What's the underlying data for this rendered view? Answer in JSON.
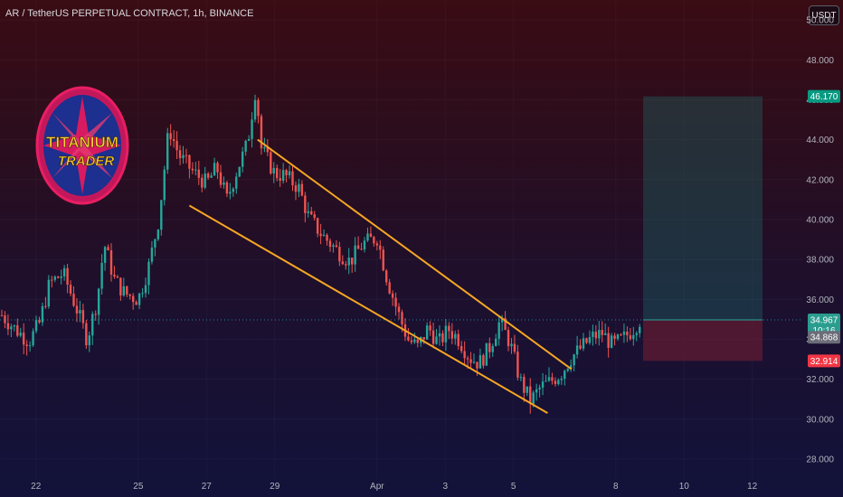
{
  "header": {
    "title": "AR / TetherUS PERPETUAL CONTRACT, 1h, BINANCE",
    "currency": "USDT"
  },
  "logo": {
    "line1": "TITANIUM",
    "line2": "TRADER"
  },
  "colors": {
    "up": "#26a69a",
    "down": "#ef5350",
    "channel": "#f5a623",
    "target_zone": "#1e6f6a",
    "stop_zone": "#7a1f33",
    "target_tag": "#089981",
    "stop_tag": "#f23645",
    "last_tag": "#2a9d8f",
    "ref_tag": "#6b6d78"
  },
  "chart_data": {
    "type": "candlestick",
    "symbol": "AR / TetherUS PERPETUAL CONTRACT",
    "interval": "1h",
    "exchange": "BINANCE",
    "ylim": [
      27,
      51
    ],
    "y_ticks": [
      "28.000",
      "30.000",
      "32.000",
      "34.000",
      "36.000",
      "38.000",
      "40.000",
      "42.000",
      "44.000",
      "46.000",
      "48.000",
      "50.000"
    ],
    "x_ticks": [
      {
        "label": "22",
        "day": 22
      },
      {
        "label": "25",
        "day": 25
      },
      {
        "label": "27",
        "day": 27
      },
      {
        "label": "29",
        "day": 29
      },
      {
        "label": "Apr",
        "day": 32
      },
      {
        "label": "3",
        "day": 34
      },
      {
        "label": "5",
        "day": 36
      },
      {
        "label": "8",
        "day": 39
      },
      {
        "label": "10",
        "day": 41
      },
      {
        "label": "12",
        "day": 43
      }
    ],
    "x_domain": [
      21.0,
      43.3
    ],
    "price_path": [
      [
        21.0,
        35.2
      ],
      [
        21.4,
        34.5
      ],
      [
        21.8,
        33.9
      ],
      [
        22.1,
        34.8
      ],
      [
        22.4,
        36.8
      ],
      [
        22.8,
        37.3
      ],
      [
        23.2,
        35.5
      ],
      [
        23.5,
        34.0
      ],
      [
        23.8,
        36.0
      ],
      [
        24.0,
        38.8
      ],
      [
        24.3,
        37.0
      ],
      [
        24.6,
        36.3
      ],
      [
        25.0,
        36.0
      ],
      [
        25.3,
        37.6
      ],
      [
        25.6,
        40.0
      ],
      [
        25.9,
        44.6
      ],
      [
        26.2,
        43.2
      ],
      [
        26.6,
        42.4
      ],
      [
        27.0,
        41.8
      ],
      [
        27.3,
        42.6
      ],
      [
        27.6,
        41.0
      ],
      [
        27.9,
        42.5
      ],
      [
        28.2,
        43.8
      ],
      [
        28.45,
        46.7
      ],
      [
        28.6,
        43.6
      ],
      [
        29.0,
        42.3
      ],
      [
        29.3,
        42.2
      ],
      [
        29.7,
        41.6
      ],
      [
        30.0,
        40.1
      ],
      [
        30.4,
        39.2
      ],
      [
        30.8,
        38.5
      ],
      [
        31.2,
        37.9
      ],
      [
        31.6,
        38.8
      ],
      [
        32.0,
        39.1
      ],
      [
        32.3,
        37.0
      ],
      [
        32.6,
        35.4
      ],
      [
        32.9,
        34.0
      ],
      [
        33.2,
        33.6
      ],
      [
        33.5,
        34.6
      ],
      [
        33.8,
        33.8
      ],
      [
        34.1,
        34.5
      ],
      [
        34.4,
        34.0
      ],
      [
        34.7,
        33.1
      ],
      [
        35.0,
        32.8
      ],
      [
        35.3,
        33.6
      ],
      [
        35.6,
        34.9
      ],
      [
        35.9,
        33.8
      ],
      [
        36.2,
        31.9
      ],
      [
        36.5,
        30.9
      ],
      [
        36.8,
        31.6
      ],
      [
        37.1,
        31.9
      ],
      [
        37.4,
        32.3
      ],
      [
        37.7,
        33.1
      ],
      [
        38.0,
        33.6
      ],
      [
        38.3,
        34.1
      ],
      [
        38.6,
        34.3
      ],
      [
        38.9,
        33.7
      ],
      [
        39.2,
        34.0
      ],
      [
        39.5,
        34.5
      ],
      [
        39.7,
        34.96
      ]
    ],
    "channel": {
      "upper": {
        "start": {
          "day": 28.5,
          "price": 44.0
        },
        "end": {
          "day": 37.7,
          "price": 32.5
        }
      },
      "lower": {
        "start": {
          "day": 26.5,
          "price": 40.7
        },
        "end": {
          "day": 37.0,
          "price": 30.3
        }
      }
    },
    "position": {
      "type": "long",
      "start_day": 39.8,
      "end_day": 43.3,
      "entry": 34.967,
      "target": 46.17,
      "stop": 32.914
    },
    "price_tags": [
      {
        "label": "46.170",
        "price": 46.17,
        "role": "target"
      },
      {
        "label": "34.967",
        "sublabel": "10:16",
        "price": 34.967,
        "role": "last"
      },
      {
        "label": "34.868",
        "price": 34.1,
        "role": "ref"
      },
      {
        "label": "32.914",
        "price": 32.914,
        "role": "stop"
      }
    ]
  }
}
